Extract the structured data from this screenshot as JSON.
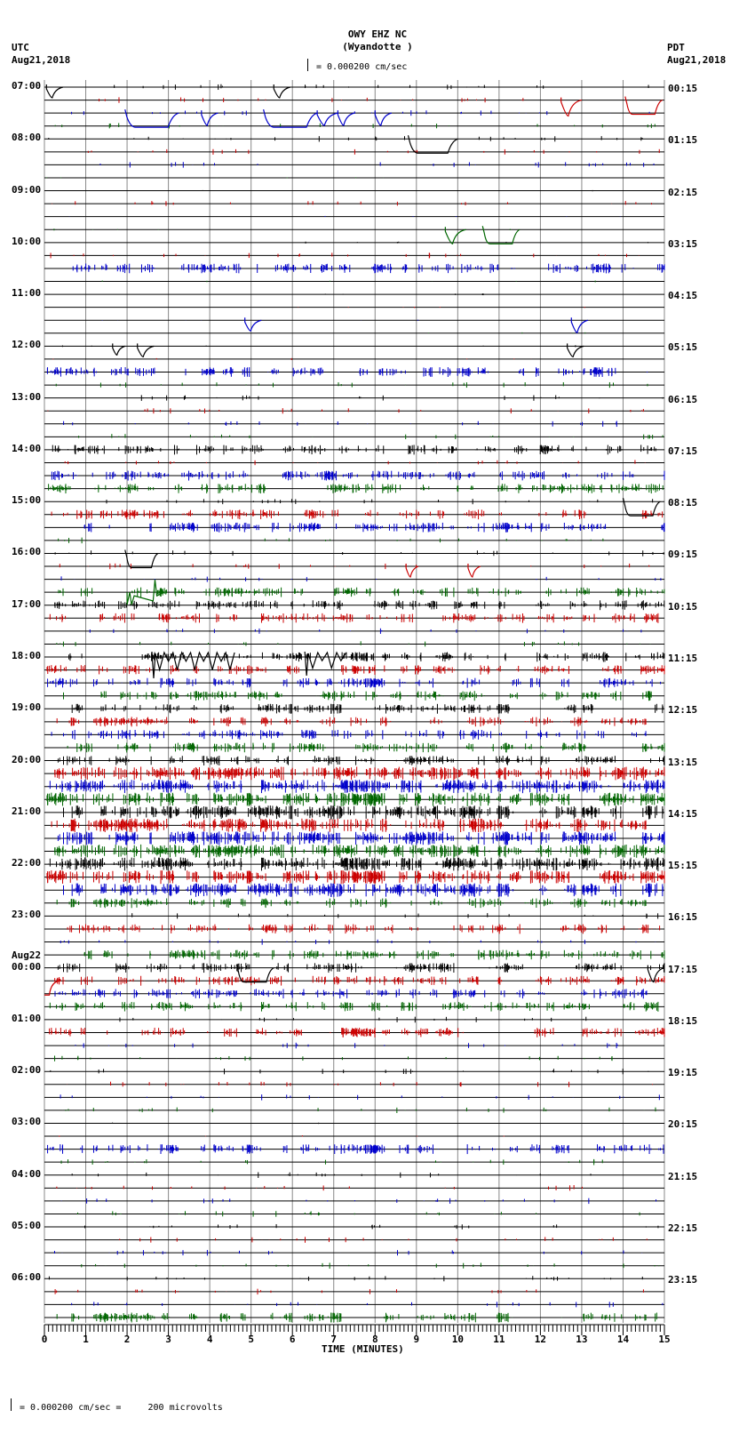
{
  "header": {
    "station": "OWY EHZ NC",
    "location": "(Wyandotte )",
    "scale_text": "= 0.000200 cm/sec",
    "left_tz": "UTC",
    "left_date": "Aug21,2018",
    "right_tz": "PDT",
    "right_date": "Aug21,2018"
  },
  "footer": {
    "scale_text": "= 0.000200 cm/sec =     200 microvolts",
    "x_axis_label": "TIME (MINUTES)"
  },
  "chart_data": {
    "type": "line",
    "title": "OWY EHZ NC (Wyandotte ) helicorder",
    "xlabel": "TIME (MINUTES)",
    "ylabel": "",
    "xlim": [
      0,
      15
    ],
    "x_ticks": [
      "0",
      "1",
      "2",
      "3",
      "4",
      "5",
      "6",
      "7",
      "8",
      "9",
      "10",
      "11",
      "12",
      "13",
      "14",
      "15"
    ],
    "grid": true,
    "rows_per_hour": 4,
    "row_count": 96,
    "trace_colors": [
      "#000000",
      "#cc0000",
      "#0000cc",
      "#006600"
    ],
    "left_labels": [
      {
        "row": 0,
        "text": "07:00"
      },
      {
        "row": 4,
        "text": "08:00"
      },
      {
        "row": 8,
        "text": "09:00"
      },
      {
        "row": 12,
        "text": "10:00"
      },
      {
        "row": 16,
        "text": "11:00"
      },
      {
        "row": 20,
        "text": "12:00"
      },
      {
        "row": 24,
        "text": "13:00"
      },
      {
        "row": 28,
        "text": "14:00"
      },
      {
        "row": 32,
        "text": "15:00"
      },
      {
        "row": 36,
        "text": "16:00"
      },
      {
        "row": 40,
        "text": "17:00"
      },
      {
        "row": 44,
        "text": "18:00"
      },
      {
        "row": 48,
        "text": "19:00"
      },
      {
        "row": 52,
        "text": "20:00"
      },
      {
        "row": 56,
        "text": "21:00"
      },
      {
        "row": 60,
        "text": "22:00"
      },
      {
        "row": 64,
        "text": "23:00"
      },
      {
        "row": 68,
        "text": "00:00",
        "date": "Aug22"
      },
      {
        "row": 72,
        "text": "01:00"
      },
      {
        "row": 76,
        "text": "02:00"
      },
      {
        "row": 80,
        "text": "03:00"
      },
      {
        "row": 84,
        "text": "04:00"
      },
      {
        "row": 88,
        "text": "05:00"
      },
      {
        "row": 92,
        "text": "06:00"
      }
    ],
    "right_labels": [
      {
        "row": 0,
        "text": "00:15"
      },
      {
        "row": 4,
        "text": "01:15"
      },
      {
        "row": 8,
        "text": "02:15"
      },
      {
        "row": 12,
        "text": "03:15"
      },
      {
        "row": 16,
        "text": "04:15"
      },
      {
        "row": 20,
        "text": "05:15"
      },
      {
        "row": 24,
        "text": "06:15"
      },
      {
        "row": 28,
        "text": "07:15"
      },
      {
        "row": 32,
        "text": "08:15"
      },
      {
        "row": 36,
        "text": "09:15"
      },
      {
        "row": 40,
        "text": "10:15"
      },
      {
        "row": 44,
        "text": "11:15"
      },
      {
        "row": 48,
        "text": "12:15"
      },
      {
        "row": 52,
        "text": "13:15"
      },
      {
        "row": 56,
        "text": "14:15"
      },
      {
        "row": 60,
        "text": "15:15"
      },
      {
        "row": 64,
        "text": "16:15"
      },
      {
        "row": 68,
        "text": "17:15"
      },
      {
        "row": 72,
        "text": "18:15"
      },
      {
        "row": 76,
        "text": "19:15"
      },
      {
        "row": 80,
        "text": "20:15"
      },
      {
        "row": 84,
        "text": "21:15"
      },
      {
        "row": 88,
        "text": "22:15"
      },
      {
        "row": 92,
        "text": "23:15"
      }
    ],
    "noise_level_by_row": [
      1,
      1,
      1,
      1,
      1,
      1,
      1,
      0,
      0,
      1,
      0,
      0,
      0,
      1,
      2,
      0,
      0,
      0,
      0,
      0,
      0,
      0,
      2,
      1,
      1,
      1,
      1,
      1,
      2,
      1,
      2,
      2,
      1,
      2,
      2,
      1,
      1,
      1,
      1,
      2,
      2,
      2,
      1,
      1,
      2,
      2,
      2,
      2,
      2,
      2,
      2,
      2,
      2,
      3,
      3,
      3,
      3,
      3,
      3,
      3,
      3,
      3,
      3,
      2,
      1,
      2,
      1,
      2,
      2,
      2,
      2,
      2,
      1,
      2,
      1,
      1,
      1,
      1,
      1,
      1,
      0,
      0,
      2,
      1,
      1,
      1,
      1,
      1,
      1,
      1,
      1,
      1,
      1,
      1,
      1,
      2
    ],
    "events": [
      {
        "row": 0,
        "min": 0.05,
        "shape": "dip",
        "depth": 12,
        "width": 0.4
      },
      {
        "row": 0,
        "min": 5.55,
        "shape": "dip",
        "depth": 12,
        "width": 0.4
      },
      {
        "row": 1,
        "min": 12.5,
        "shape": "dip",
        "depth": 18,
        "width": 0.5
      },
      {
        "row": 1,
        "min": 14.05,
        "shape": "box",
        "depth": 16,
        "width": 0.9
      },
      {
        "row": 2,
        "min": 1.95,
        "shape": "box",
        "depth": 16,
        "width": 1.3
      },
      {
        "row": 2,
        "min": 3.8,
        "shape": "dip",
        "depth": 14,
        "width": 0.4
      },
      {
        "row": 2,
        "min": 5.3,
        "shape": "box",
        "depth": 16,
        "width": 1.3
      },
      {
        "row": 2,
        "min": 6.6,
        "shape": "dip",
        "depth": 14,
        "width": 0.5
      },
      {
        "row": 2,
        "min": 7.1,
        "shape": "dip",
        "depth": 14,
        "width": 0.4
      },
      {
        "row": 2,
        "min": 8.0,
        "shape": "dip",
        "depth": 14,
        "width": 0.4
      },
      {
        "row": 4,
        "min": 8.8,
        "shape": "box",
        "depth": 16,
        "width": 1.2
      },
      {
        "row": 11,
        "min": 9.7,
        "shape": "dip",
        "depth": 16,
        "width": 0.5
      },
      {
        "row": 11,
        "min": 10.6,
        "shape": "box",
        "depth": 16,
        "width": 0.9
      },
      {
        "row": 18,
        "min": 4.85,
        "shape": "dip",
        "depth": 12,
        "width": 0.4
      },
      {
        "row": 18,
        "min": 12.75,
        "shape": "dip",
        "depth": 14,
        "width": 0.4
      },
      {
        "row": 20,
        "min": 1.65,
        "shape": "dip",
        "depth": 10,
        "width": 0.3
      },
      {
        "row": 20,
        "min": 2.25,
        "shape": "dip",
        "depth": 12,
        "width": 0.4
      },
      {
        "row": 20,
        "min": 12.65,
        "shape": "dip",
        "depth": 12,
        "width": 0.4
      },
      {
        "row": 32,
        "min": 14.0,
        "shape": "box",
        "depth": 16,
        "width": 0.9
      },
      {
        "row": 36,
        "min": 1.95,
        "shape": "box",
        "depth": 16,
        "width": 0.8
      },
      {
        "row": 37,
        "min": 8.75,
        "shape": "dip",
        "depth": 12,
        "width": 0.3
      },
      {
        "row": 37,
        "min": 10.25,
        "shape": "dip",
        "depth": 12,
        "width": 0.3
      },
      {
        "row": 39,
        "min": 2.0,
        "shape": "spikes",
        "depth": 14,
        "width": 0.9
      },
      {
        "row": 44,
        "min": 2.6,
        "shape": "wiggle",
        "depth": 16,
        "width": 2.0
      },
      {
        "row": 44,
        "min": 6.3,
        "shape": "wiggle",
        "depth": 14,
        "width": 1.0
      },
      {
        "row": 68,
        "min": 4.65,
        "shape": "box",
        "depth": 16,
        "width": 0.9
      },
      {
        "row": 68,
        "min": 14.6,
        "shape": "dip",
        "depth": 16,
        "width": 0.4
      },
      {
        "row": 69,
        "min": 0.0,
        "shape": "rise",
        "depth": 16,
        "width": 0.4
      }
    ]
  }
}
